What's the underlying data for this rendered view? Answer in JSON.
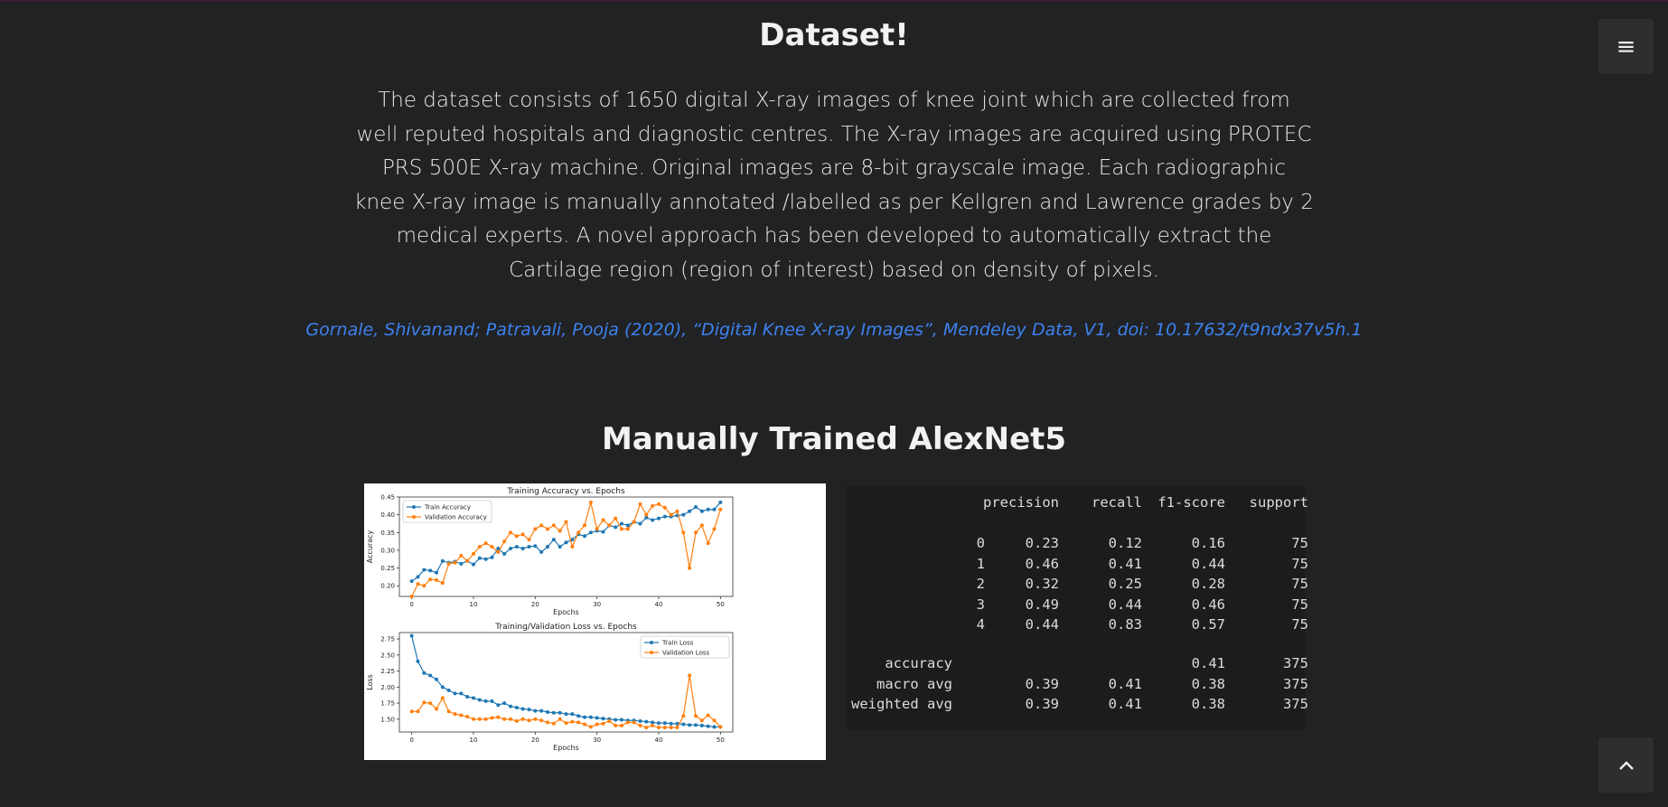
{
  "dataset": {
    "title": "Dataset!",
    "description": "The dataset consists of 1650 digital X-ray images of knee joint which are collected from well reputed hospitals and diagnostic centres. The X-ray images are acquired using PROTEC PRS 500E X-ray machine. Original images are 8-bit grayscale image. Each radiographic knee X-ray image is manually annotated /labelled as per Kellgren and Lawrence grades by 2 medical experts. A novel approach has been developed to automatically extract the Cartilage region (region of interest) based on density of pixels.",
    "citation": "Gornale, Shivanand; Patravali, Pooja (2020), “Digital Knee X-ray Images”, Mendeley Data, V1, doi: 10.17632/t9ndx37v5h.1"
  },
  "model": {
    "title": "Manually Trained AlexNet5"
  },
  "menu_icon": "hamburger-menu-icon",
  "scroll_top_icon": "chevron-up-icon",
  "colors": {
    "background": "#212223",
    "link": "#3d82f0",
    "train_series": "#1f77b4",
    "validation_series": "#ff7f0e"
  },
  "report": {
    "headers": [
      "",
      "precision",
      "recall",
      "f1-score",
      "support"
    ],
    "rows": [
      [
        "0",
        "0.23",
        "0.12",
        "0.16",
        "75"
      ],
      [
        "1",
        "0.46",
        "0.41",
        "0.44",
        "75"
      ],
      [
        "2",
        "0.32",
        "0.25",
        "0.28",
        "75"
      ],
      [
        "3",
        "0.49",
        "0.44",
        "0.46",
        "75"
      ],
      [
        "4",
        "0.44",
        "0.83",
        "0.57",
        "75"
      ]
    ],
    "summary": [
      [
        "accuracy",
        "",
        "",
        "0.41",
        "375"
      ],
      [
        "macro avg",
        "0.39",
        "0.41",
        "0.38",
        "375"
      ],
      [
        "weighted avg",
        "0.39",
        "0.41",
        "0.38",
        "375"
      ]
    ]
  },
  "chart_data": [
    {
      "type": "line",
      "title": "Training Accuracy vs. Epochs",
      "xlabel": "Epochs",
      "ylabel": "Accuracy",
      "xlim": [
        -2,
        52
      ],
      "ylim": [
        0.17,
        0.45
      ],
      "xticks": [
        0,
        10,
        20,
        30,
        40,
        50
      ],
      "yticks": [
        0.2,
        0.25,
        0.3,
        0.35,
        0.4,
        0.45
      ],
      "legend": "top-left",
      "series": [
        {
          "name": "Train Accuracy",
          "color": "#1f77b4",
          "values": [
            0.213,
            0.225,
            0.245,
            0.243,
            0.237,
            0.27,
            0.265,
            0.268,
            0.262,
            0.27,
            0.26,
            0.278,
            0.275,
            0.28,
            0.305,
            0.29,
            0.305,
            0.31,
            0.305,
            0.31,
            0.312,
            0.295,
            0.31,
            0.33,
            0.31,
            0.322,
            0.33,
            0.345,
            0.34,
            0.35,
            0.355,
            0.352,
            0.37,
            0.365,
            0.375,
            0.37,
            0.38,
            0.375,
            0.392,
            0.385,
            0.39,
            0.395,
            0.395,
            0.398,
            0.4,
            0.41,
            0.422,
            0.41,
            0.415,
            0.415,
            0.435
          ]
        },
        {
          "name": "Validation Accuracy",
          "color": "#ff7f0e",
          "values": [
            0.17,
            0.205,
            0.2,
            0.218,
            0.216,
            0.208,
            0.262,
            0.265,
            0.285,
            0.27,
            0.29,
            0.31,
            0.32,
            0.31,
            0.295,
            0.325,
            0.35,
            0.34,
            0.345,
            0.33,
            0.36,
            0.37,
            0.36,
            0.37,
            0.355,
            0.38,
            0.31,
            0.35,
            0.37,
            0.435,
            0.36,
            0.385,
            0.37,
            0.39,
            0.36,
            0.36,
            0.38,
            0.43,
            0.4,
            0.425,
            0.43,
            0.42,
            0.4,
            0.41,
            0.35,
            0.25,
            0.35,
            0.37,
            0.32,
            0.36,
            0.415
          ]
        }
      ]
    },
    {
      "type": "line",
      "title": "Training/Validation Loss vs. Epochs",
      "xlabel": "Epochs",
      "ylabel": "Loss",
      "xlim": [
        -2,
        52
      ],
      "ylim": [
        1.3,
        2.85
      ],
      "xticks": [
        0,
        10,
        20,
        30,
        40,
        50
      ],
      "yticks": [
        1.5,
        1.75,
        2.0,
        2.25,
        2.5,
        2.75
      ],
      "legend": "top-right",
      "series": [
        {
          "name": "Train Loss",
          "color": "#1f77b4",
          "values": [
            2.8,
            2.4,
            2.22,
            2.18,
            2.12,
            2.0,
            1.95,
            1.9,
            1.9,
            1.85,
            1.83,
            1.8,
            1.78,
            1.78,
            1.72,
            1.75,
            1.7,
            1.68,
            1.66,
            1.65,
            1.63,
            1.63,
            1.61,
            1.6,
            1.6,
            1.58,
            1.58,
            1.55,
            1.53,
            1.53,
            1.52,
            1.51,
            1.5,
            1.49,
            1.49,
            1.48,
            1.48,
            1.47,
            1.46,
            1.45,
            1.44,
            1.44,
            1.43,
            1.43,
            1.42,
            1.41,
            1.41,
            1.4,
            1.39,
            1.38,
            1.38
          ]
        },
        {
          "name": "Validation Loss",
          "color": "#ff7f0e",
          "values": [
            1.62,
            1.62,
            1.76,
            1.75,
            1.66,
            1.83,
            1.62,
            1.58,
            1.56,
            1.54,
            1.5,
            1.5,
            1.5,
            1.52,
            1.53,
            1.5,
            1.5,
            1.47,
            1.5,
            1.48,
            1.5,
            1.48,
            1.45,
            1.43,
            1.5,
            1.44,
            1.46,
            1.45,
            1.42,
            1.38,
            1.42,
            1.43,
            1.47,
            1.4,
            1.4,
            1.45,
            1.45,
            1.4,
            1.37,
            1.4,
            1.37,
            1.37,
            1.37,
            1.37,
            1.55,
            2.18,
            1.55,
            1.48,
            1.56,
            1.48,
            1.38
          ]
        }
      ]
    }
  ]
}
